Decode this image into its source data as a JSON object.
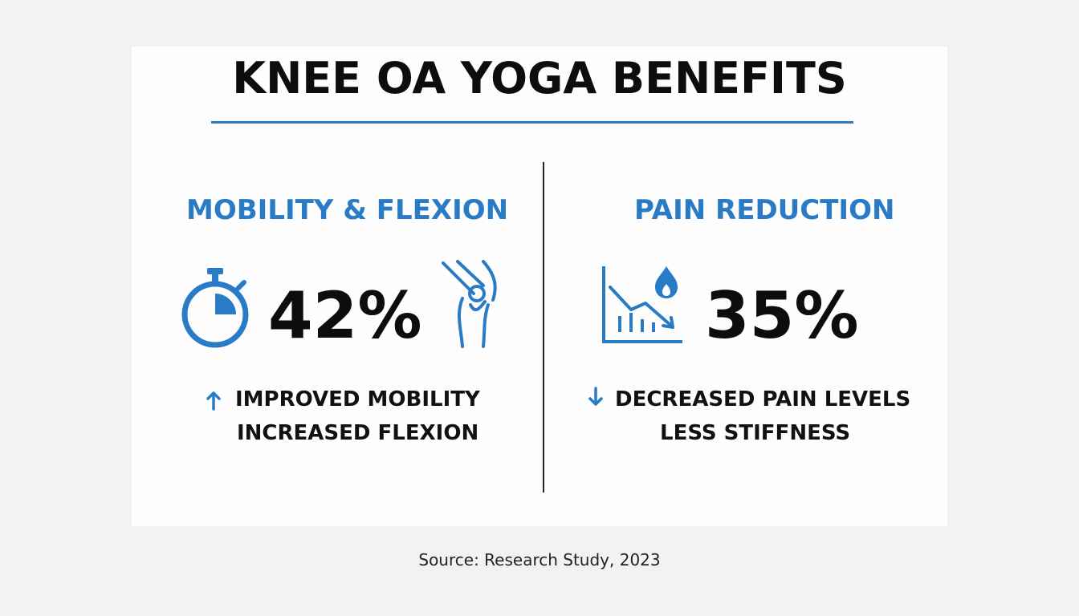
{
  "title": "KNEE OA YOGA BENEFITS",
  "colors": {
    "accent": "#2a7bc6",
    "text": "#0d0d0d",
    "card": "#fdfdfd",
    "background": "#f2f2f2"
  },
  "mobility": {
    "heading": "MOBILITY & FLEXION",
    "value": "42%",
    "icons": [
      "stopwatch-icon",
      "knee-joint-icon",
      "arrow-up-icon"
    ],
    "lines": [
      "IMPROVED MOBILITY",
      "INCREASED FLEXION"
    ]
  },
  "pain": {
    "heading": "PAIN REDUCTION",
    "value": "35%",
    "icons": [
      "declining-chart-flame-icon",
      "arrow-down-icon"
    ],
    "lines": [
      "DECREASED PAIN LEVELS",
      "LESS STIFFNESS"
    ]
  },
  "source": "Source: Research Study, 2023"
}
